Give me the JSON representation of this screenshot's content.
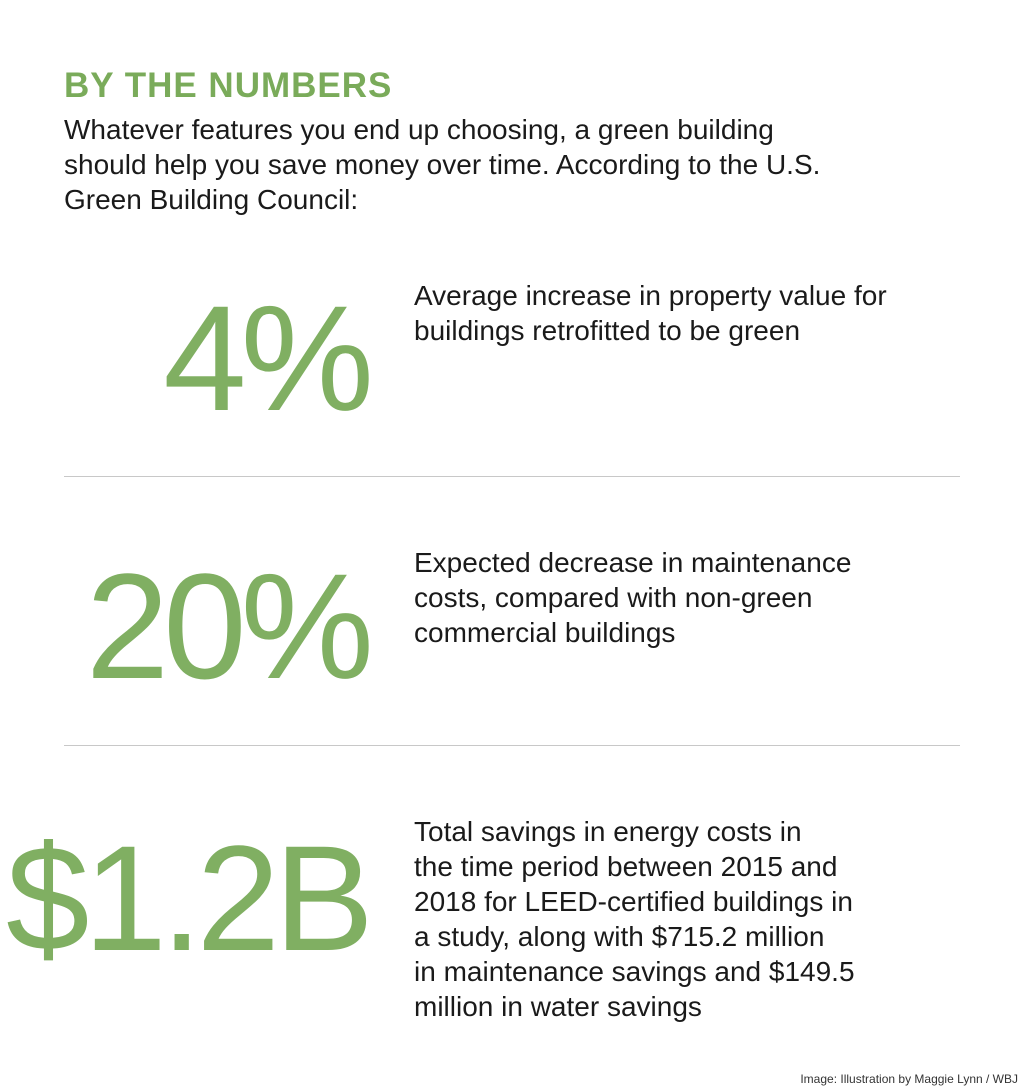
{
  "header": {
    "title": "BY THE NUMBERS",
    "intro_lines": [
      "Whatever features you end up choosing, a green building",
      "should help you save money over time. According to the U.S.",
      "Green Building Council:"
    ]
  },
  "items": [
    {
      "figure": "4%",
      "description_lines": [
        "Average increase in property value for",
        "buildings retrofitted to be green"
      ]
    },
    {
      "figure": "20%",
      "description_lines": [
        "Expected decrease in maintenance",
        "costs, compared with non-green",
        "commercial buildings"
      ]
    },
    {
      "figure": "$1.2B",
      "description_lines": [
        "Total savings in energy costs in",
        "the time period between 2015 and",
        "2018 for LEED-certified buildings in",
        "a study, along with $715.2 million",
        "in maintenance savings and $149.5",
        "million in water savings"
      ]
    }
  ],
  "credit": "Image: Illustration by Maggie Lynn / WBJ"
}
